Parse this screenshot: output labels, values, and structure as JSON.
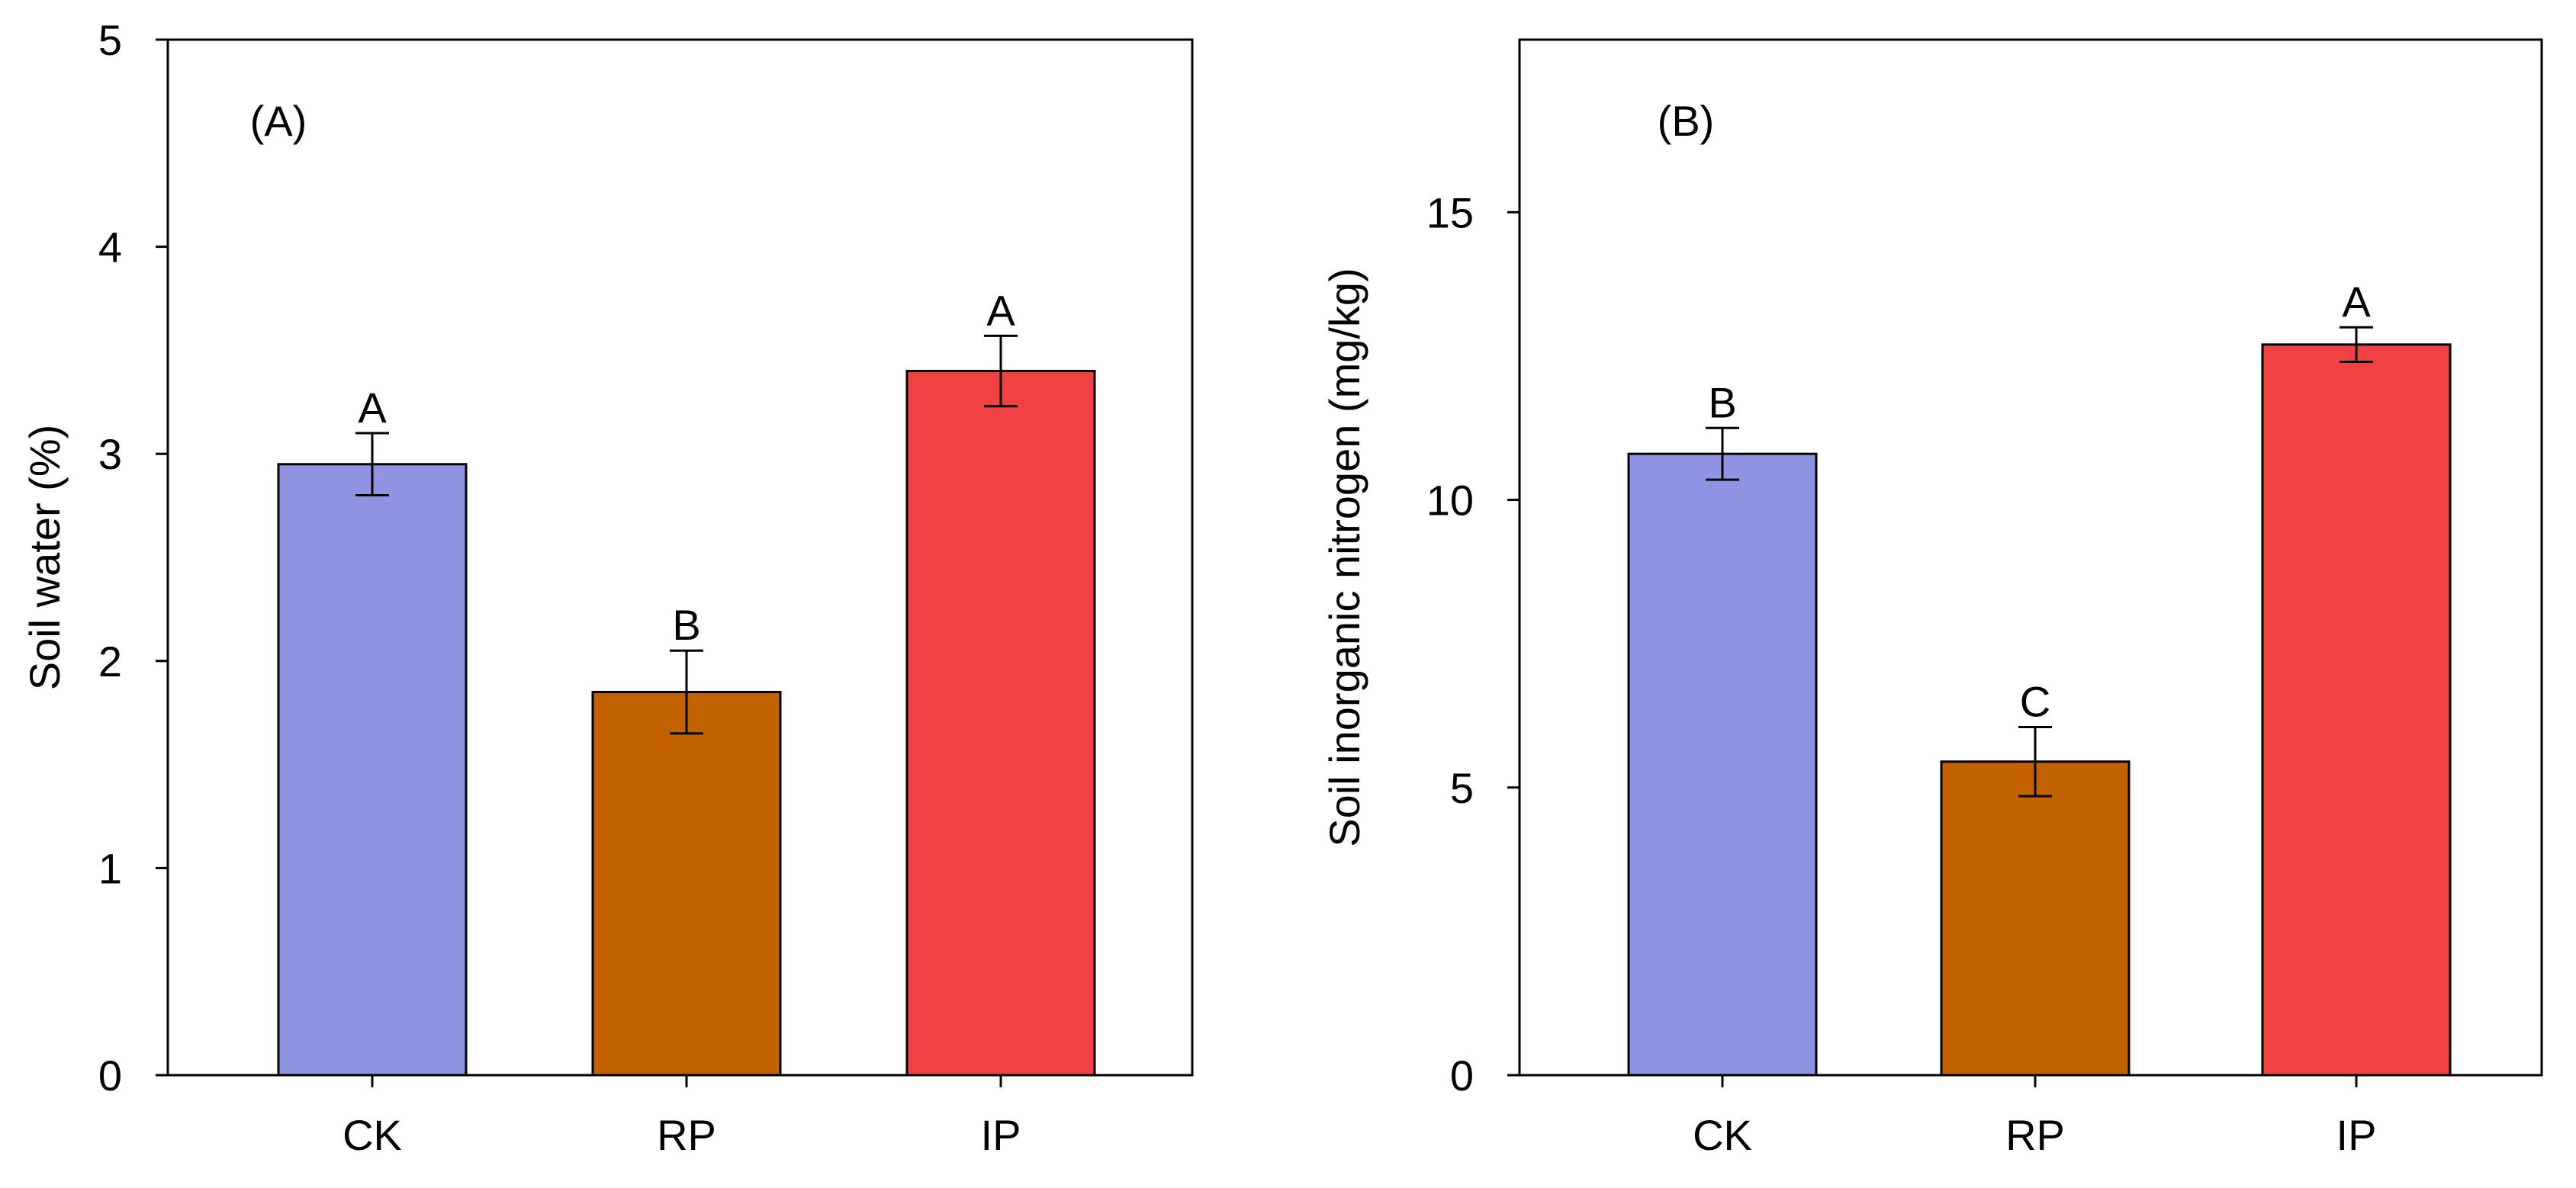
{
  "chart_data": [
    {
      "type": "bar",
      "panel_label": "(A)",
      "ylabel": "Soil water (%)",
      "xlabel": "",
      "ylim": [
        0,
        5
      ],
      "yticks": [
        0,
        1,
        2,
        3,
        4,
        5
      ],
      "categories": [
        "CK",
        "RP",
        "IP"
      ],
      "values": [
        2.95,
        1.85,
        3.4
      ],
      "errors": [
        0.15,
        0.2,
        0.17
      ],
      "letters": [
        "A",
        "B",
        "A"
      ],
      "colors": [
        "#8f94e2",
        "#c26200",
        "#f04242"
      ],
      "frame": "closed box",
      "grid": false
    },
    {
      "type": "bar",
      "panel_label": "(B)",
      "ylabel": "Soil inorganic nitrogen (mg/kg)",
      "xlabel": "",
      "ylim": [
        0,
        18
      ],
      "yticks": [
        0,
        5,
        10,
        15
      ],
      "categories": [
        "CK",
        "RP",
        "IP"
      ],
      "values": [
        10.8,
        5.45,
        12.7
      ],
      "errors": [
        0.45,
        0.6,
        0.3
      ],
      "letters": [
        "B",
        "C",
        "A"
      ],
      "colors": [
        "#8f94e2",
        "#c26200",
        "#f04242"
      ],
      "frame": "closed box",
      "grid": false
    }
  ]
}
